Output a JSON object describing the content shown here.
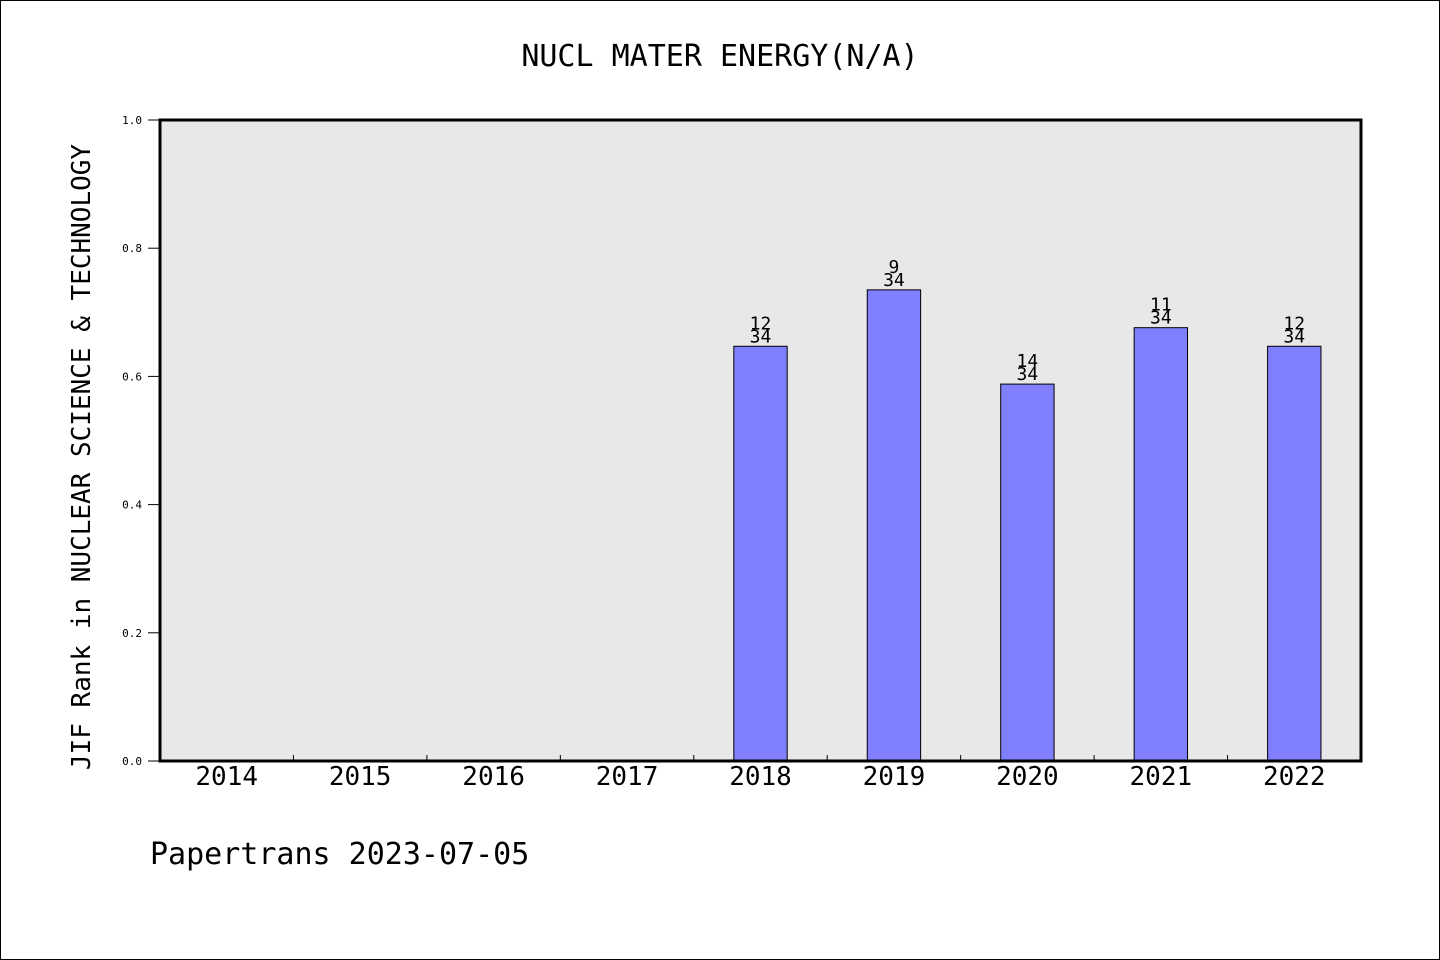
{
  "chart_data": {
    "type": "bar",
    "title": "NUCL MATER ENERGY(N/A)",
    "xlabel": "",
    "ylabel": "JIF Rank in NUCLEAR SCIENCE & TECHNOLOGY",
    "categories": [
      "2014",
      "2015",
      "2016",
      "2017",
      "2018",
      "2019",
      "2020",
      "2021",
      "2022"
    ],
    "values": [
      null,
      null,
      null,
      null,
      0.647,
      0.735,
      0.588,
      0.676,
      0.647
    ],
    "rank_labels": [
      null,
      null,
      null,
      null,
      {
        "rank": "12",
        "total": "34"
      },
      {
        "rank": "9",
        "total": "34"
      },
      {
        "rank": "14",
        "total": "34"
      },
      {
        "rank": "11",
        "total": "34"
      },
      {
        "rank": "12",
        "total": "34"
      }
    ],
    "ylim": [
      0,
      1.0
    ],
    "yticks": [
      "0.0",
      "0.2",
      "0.4",
      "0.6",
      "0.8",
      "1.0"
    ],
    "grid": false,
    "colors": {
      "bar": "#8080ff",
      "plot_bg": "#e8e8e8",
      "axis": "#000000"
    }
  },
  "footer": {
    "text": "Papertrans 2023-07-05"
  }
}
